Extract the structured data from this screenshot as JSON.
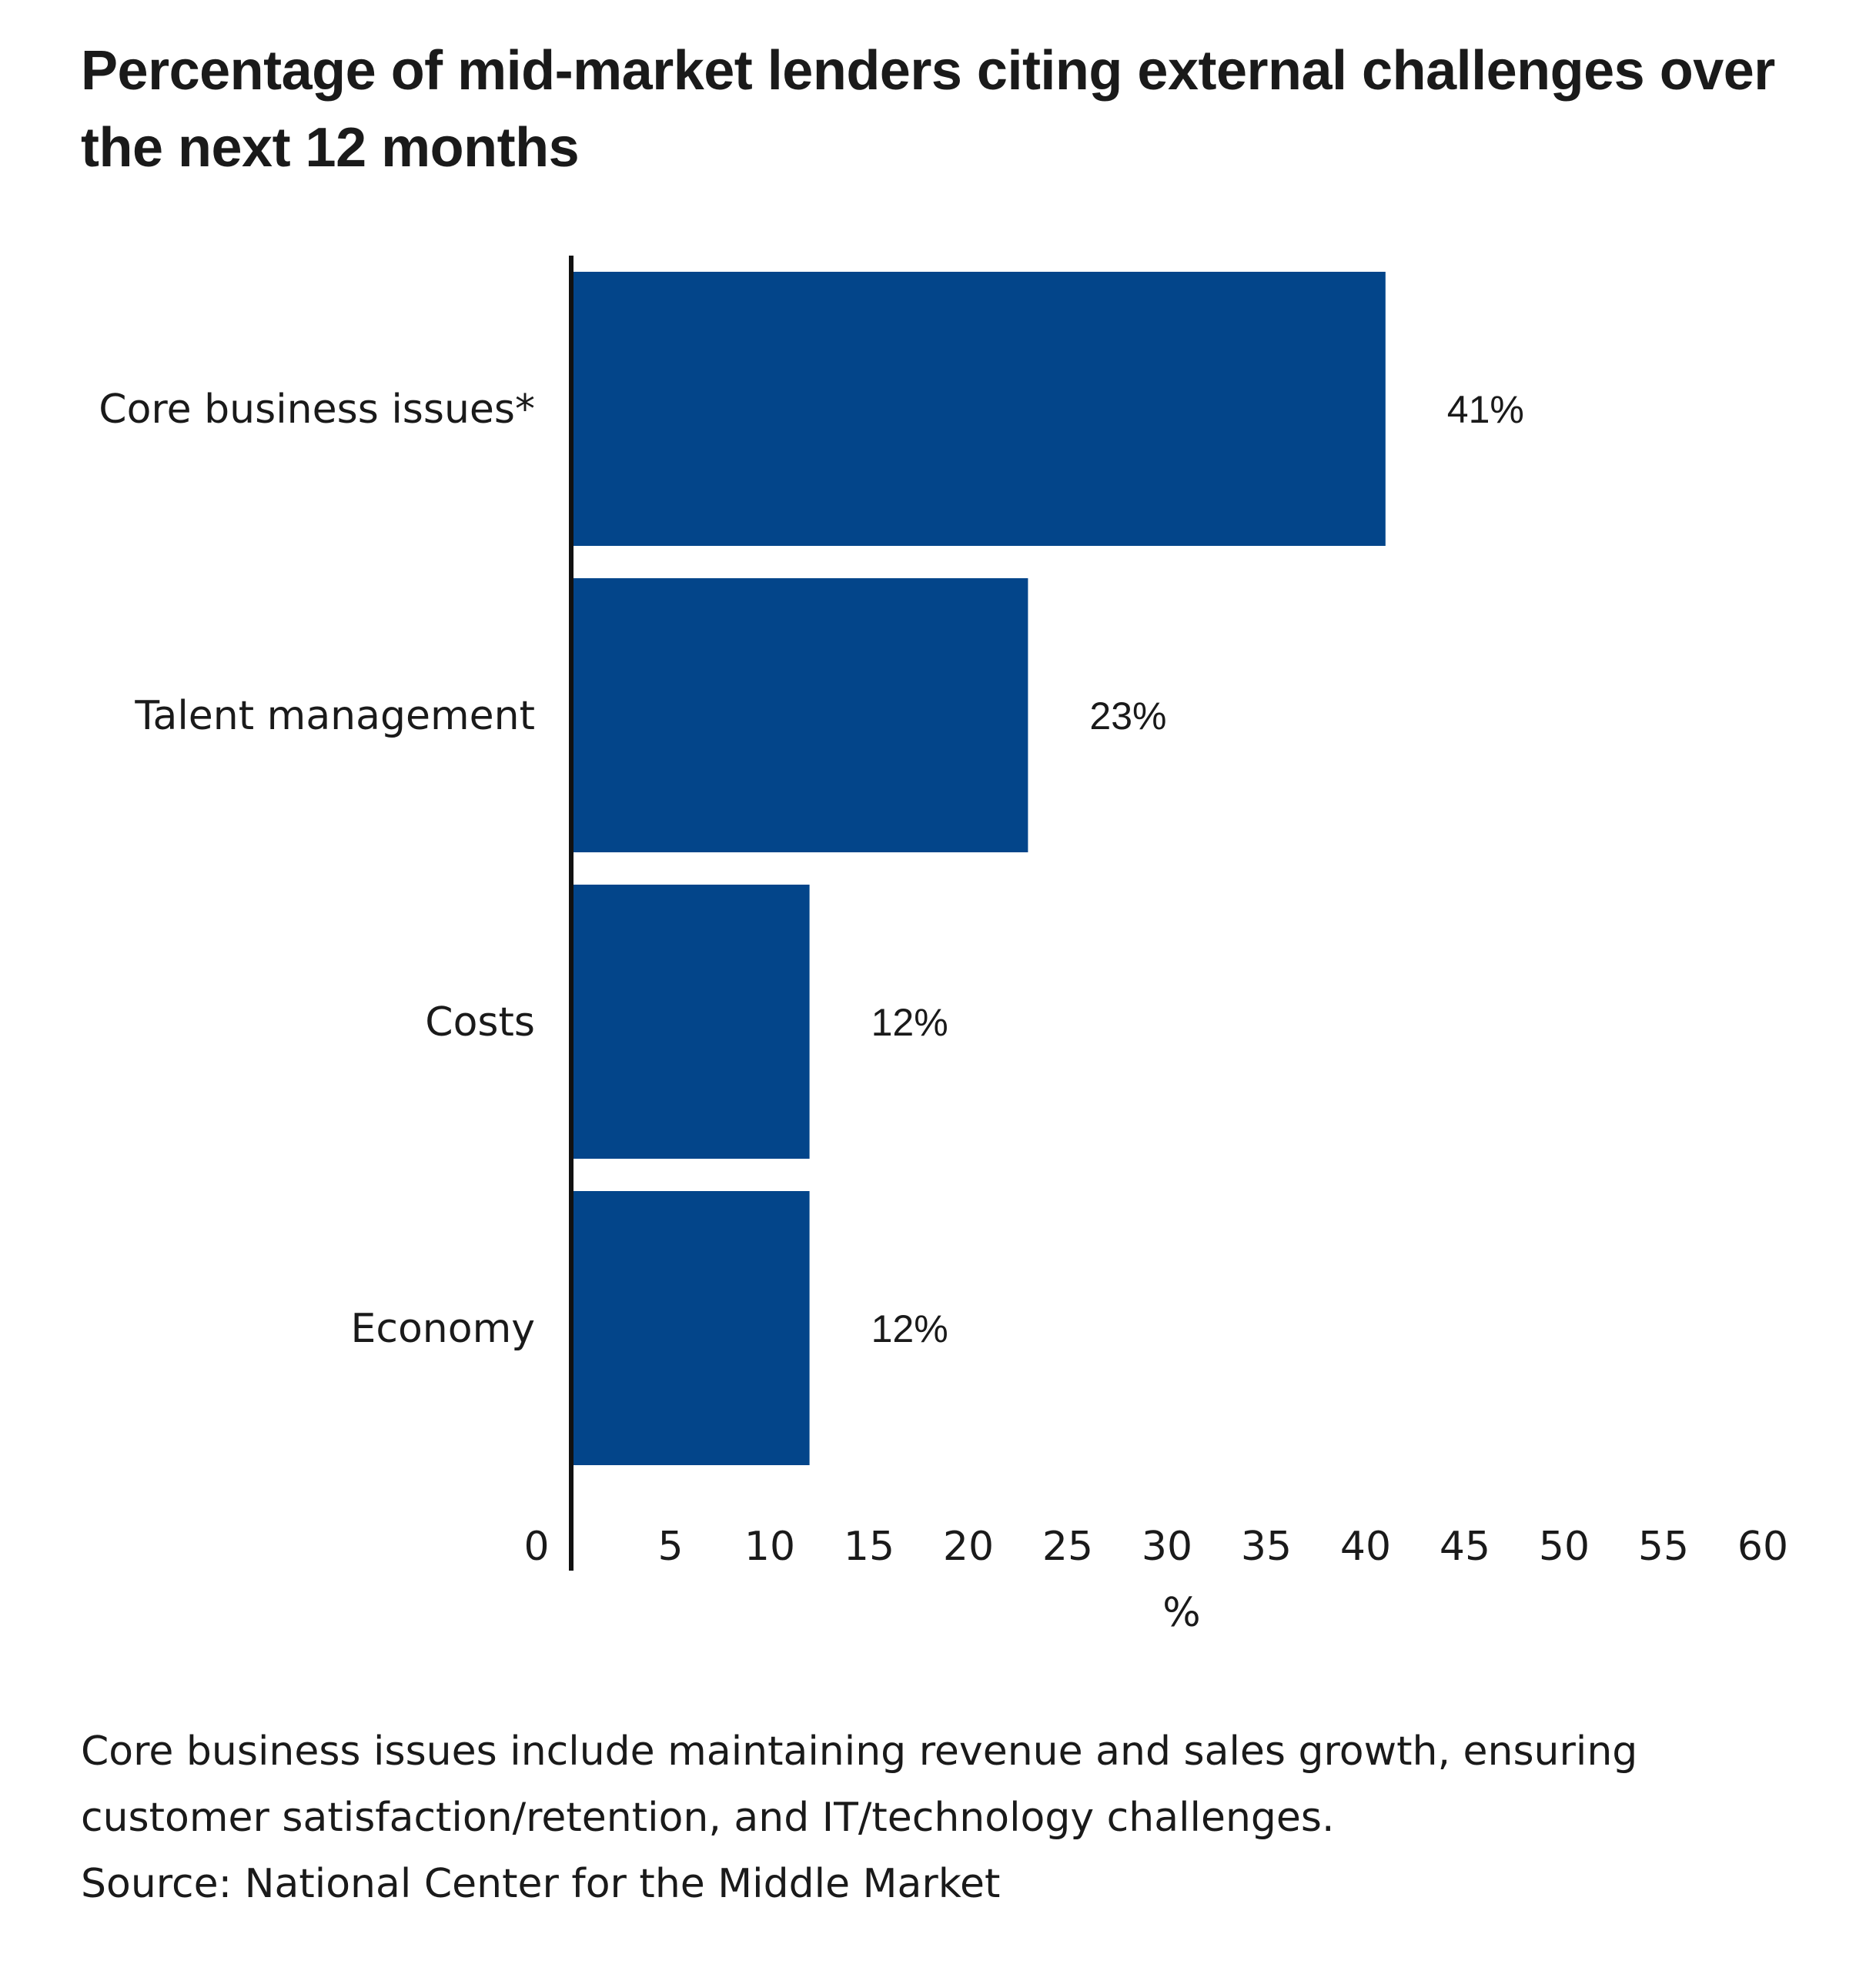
{
  "chart_data": {
    "type": "bar",
    "orientation": "horizontal",
    "title": "Percentage of mid-market lenders citing external challenges over the next 12 months",
    "categories": [
      "Core business issues*",
      "Talent management",
      "Costs",
      "Economy"
    ],
    "values": [
      41,
      23,
      12,
      12
    ],
    "data_labels": [
      "41%",
      "23%",
      "12%",
      "12%"
    ],
    "xlabel": "%",
    "xlim": [
      0,
      60
    ],
    "xticks": [
      0,
      5,
      10,
      15,
      20,
      25,
      30,
      35,
      40,
      45,
      50,
      55,
      60
    ],
    "grid": false,
    "bar_color": "#03458a"
  },
  "footnote": {
    "note": "Core business issues include maintaining revenue and sales growth, ensuring customer satisfaction/retention, and IT/technology challenges.",
    "source": "Source: National Center for the Middle Market"
  }
}
